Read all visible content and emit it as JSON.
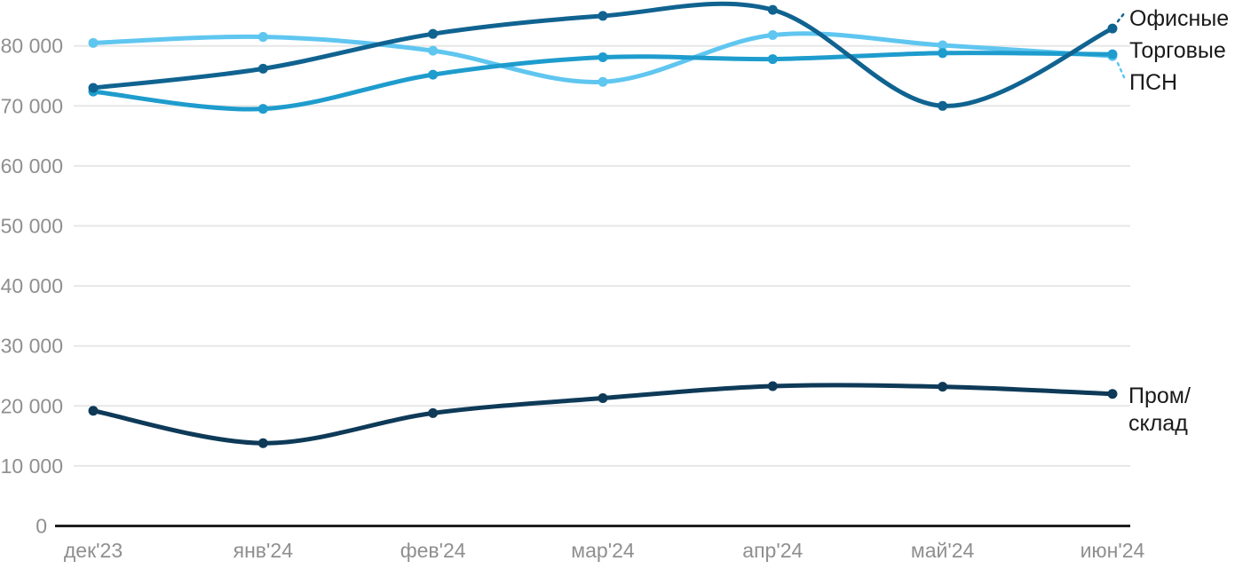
{
  "colors": {
    "background": "#FFFFFF",
    "axis": "#1F1F1F",
    "grid": "#E7E7E7",
    "tick_label": "#8F8F8F",
    "legend_text": "#1A1A1A"
  },
  "chart_data": {
    "type": "line",
    "title": "",
    "xlabel": "",
    "ylabel": "",
    "grid": "horizontal",
    "legend_position": "right-edge-direct-labels",
    "x_categories": [
      "дек'23",
      "янв'24",
      "фев'24",
      "мар'24",
      "апр'24",
      "май'24",
      "июн'24"
    ],
    "y_ticks": [
      0,
      10000,
      20000,
      30000,
      40000,
      50000,
      60000,
      70000,
      80000
    ],
    "y_tick_labels": [
      "0",
      "10 000",
      "20 000",
      "30 000",
      "40 000",
      "50 000",
      "60 000",
      "70 000",
      "80 000"
    ],
    "ylim": [
      0,
      88000
    ],
    "series": [
      {
        "name": "Офисные",
        "color": "#106390",
        "values": [
          73000,
          76200,
          82000,
          85000,
          86000,
          70000,
          82900
        ],
        "leader": "up"
      },
      {
        "name": "Торговые",
        "color": "#1E9CCD",
        "values": [
          72400,
          69500,
          75200,
          78100,
          77800,
          78800,
          78600
        ],
        "leader": "none"
      },
      {
        "name": "ПСН",
        "color": "#5FC6F0",
        "values": [
          80500,
          81500,
          79200,
          74000,
          81800,
          80100,
          78300
        ],
        "leader": "down"
      },
      {
        "name": "Пром/склад",
        "color": "#0E3A58",
        "values": [
          19200,
          13800,
          18800,
          21300,
          23300,
          23200,
          22000
        ],
        "leader": "none",
        "label_lines": [
          "Пром/",
          "склад"
        ]
      }
    ]
  }
}
